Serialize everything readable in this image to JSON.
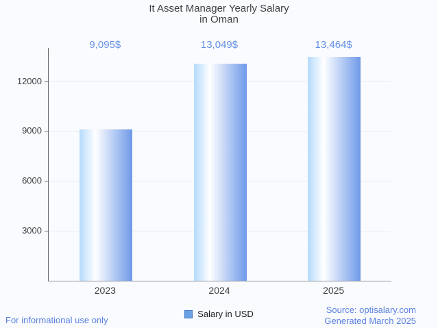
{
  "title": {
    "line1": "It Asset Manager Yearly Salary",
    "line2": "in Oman"
  },
  "legend": {
    "label": "Salary in USD",
    "marker_fill": "#69a0e6",
    "marker_border": "#4678be"
  },
  "footer": {
    "left": "For informational use only",
    "source": "Source: optisalary.com",
    "generated": "Generated March 2025"
  },
  "colors": {
    "background": "#fafbfe",
    "title_text": "#3c4043",
    "axis_text": "#3c4043",
    "value_label_text": "#6491e6",
    "footer_text": "#5a82e1",
    "gridline": "#e8ebf0",
    "bar_gradient_left": "#b4dafc",
    "bar_gradient_middle": "#ffffff",
    "bar_gradient_right": "#6e99e9"
  },
  "chart_data": {
    "type": "bar",
    "title": "It Asset Manager Yearly Salary in Oman",
    "categories": [
      "2023",
      "2024",
      "2025"
    ],
    "series": [
      {
        "name": "Salary in USD",
        "values": [
          9095,
          13049,
          13464
        ]
      }
    ],
    "value_labels": [
      "9,095$",
      "13,049$",
      "13,464$"
    ],
    "xlabel": "",
    "ylabel": "",
    "ylim": [
      0,
      14000
    ],
    "yticks": [
      3000,
      6000,
      9000,
      12000
    ],
    "grid": true,
    "legend_position": "bottom"
  }
}
